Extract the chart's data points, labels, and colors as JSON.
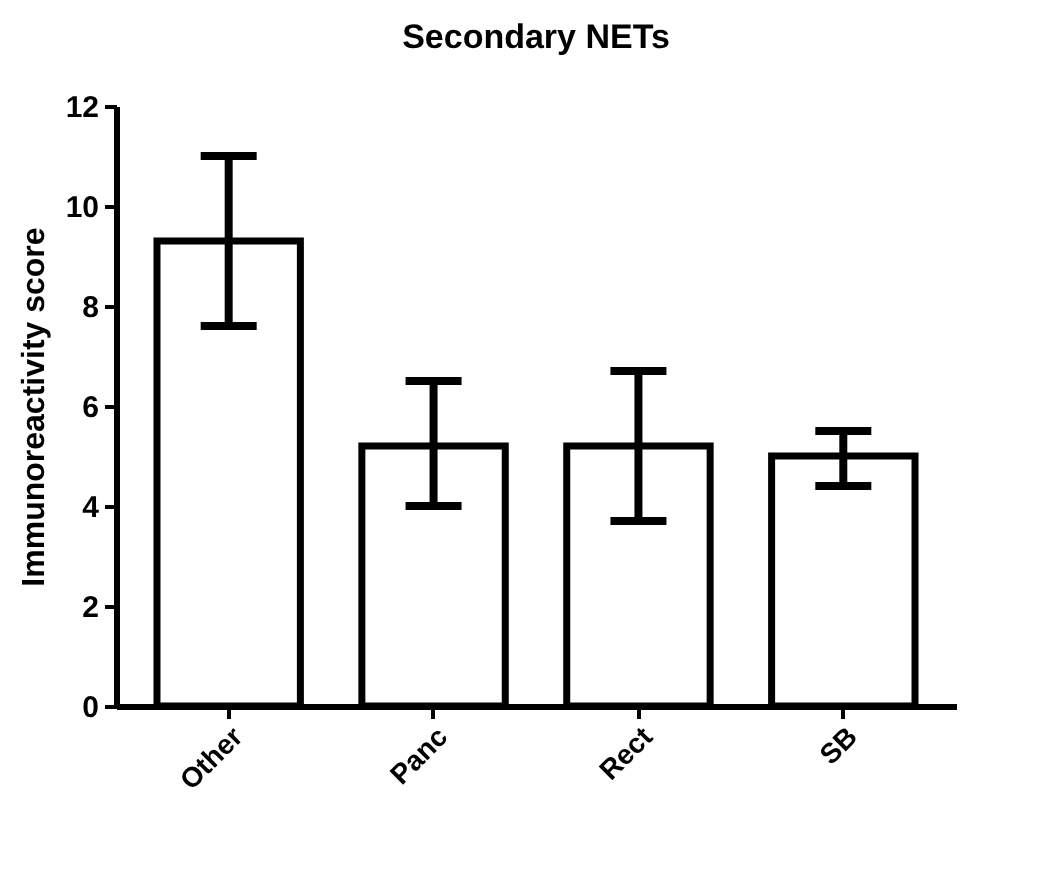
{
  "chart_data": {
    "type": "bar",
    "title": "Secondary NETs",
    "ylabel": "Immunoreactivity score",
    "categories": [
      "Other",
      "Panc",
      "Rect",
      "SB"
    ],
    "values": [
      9.3,
      5.2,
      5.2,
      5.0
    ],
    "errors": [
      [
        7.6,
        11.0
      ],
      [
        4.0,
        6.5
      ],
      [
        3.7,
        6.7
      ],
      [
        4.4,
        5.5
      ]
    ],
    "color": "#ffffff",
    "ylim": [
      0,
      12
    ],
    "yticks": [
      0,
      2,
      4,
      6,
      8,
      10,
      12
    ],
    "grid": false
  }
}
